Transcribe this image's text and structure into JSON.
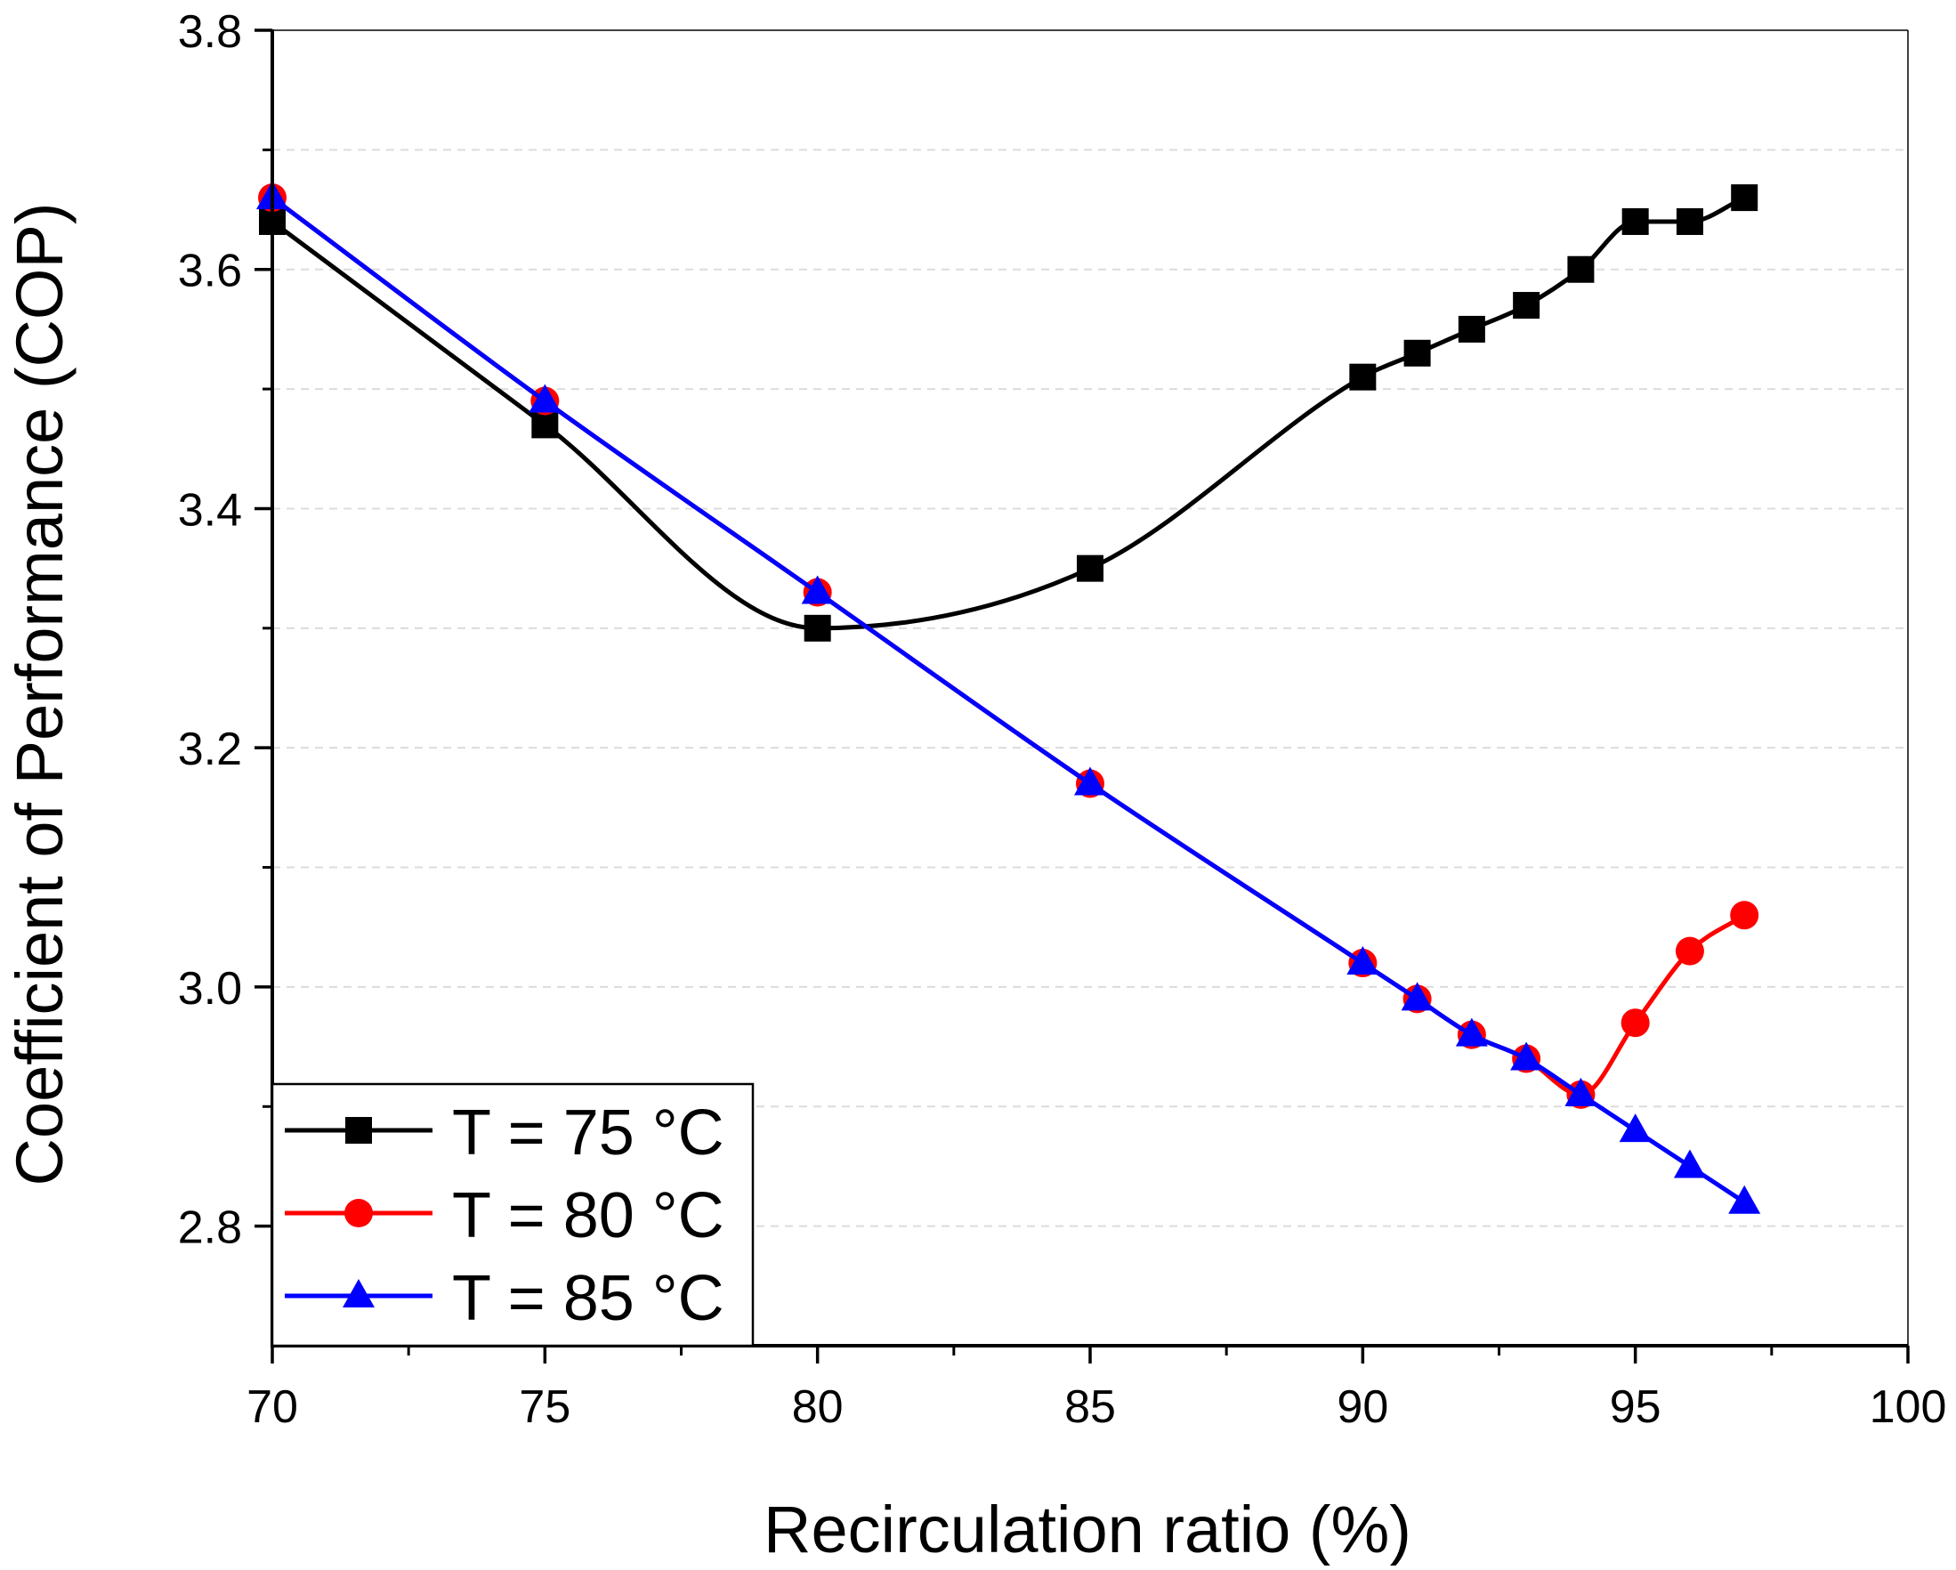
{
  "chart_data": {
    "type": "line",
    "title": "",
    "xlabel": "Recirculation ratio (%)",
    "ylabel": "Coefficient of Performance (COP)",
    "xlim": [
      70,
      100
    ],
    "ylim": [
      2.7,
      3.8
    ],
    "x_ticks": [
      70,
      75,
      80,
      85,
      90,
      95,
      100
    ],
    "x_tick_labels": [
      "70",
      "75",
      "80",
      "85",
      "90",
      "95",
      "100"
    ],
    "y_ticks": [
      2.8,
      3.0,
      3.2,
      3.4,
      3.6,
      3.8
    ],
    "y_tick_labels": [
      "2.8",
      "3.0",
      "3.2",
      "3.4",
      "3.6",
      "3.8"
    ],
    "grid": "horizontal dashed",
    "legend_position": "bottom-left",
    "series": [
      {
        "name": "T = 75 °C",
        "color": "#000000",
        "marker": "square",
        "x": [
          70,
          75,
          80,
          85,
          90,
          91,
          92,
          93,
          94,
          95,
          96,
          97
        ],
        "y": [
          3.64,
          3.47,
          3.3,
          3.35,
          3.51,
          3.53,
          3.55,
          3.57,
          3.6,
          3.64,
          3.64,
          3.66
        ]
      },
      {
        "name": "T = 80 °C",
        "color": "#ff0000",
        "marker": "circle",
        "x": [
          70,
          75,
          80,
          85,
          90,
          91,
          92,
          93,
          94,
          95,
          96,
          97
        ],
        "y": [
          3.66,
          3.49,
          3.33,
          3.17,
          3.02,
          2.99,
          2.96,
          2.94,
          2.91,
          2.97,
          3.03,
          3.06
        ]
      },
      {
        "name": "T = 85 °C",
        "color": "#0000ff",
        "marker": "triangle",
        "x": [
          70,
          75,
          80,
          85,
          90,
          91,
          92,
          93,
          94,
          95,
          96,
          97
        ],
        "y": [
          3.66,
          3.49,
          3.33,
          3.17,
          3.02,
          2.99,
          2.96,
          2.94,
          2.91,
          2.88,
          2.85,
          2.82
        ]
      }
    ]
  }
}
